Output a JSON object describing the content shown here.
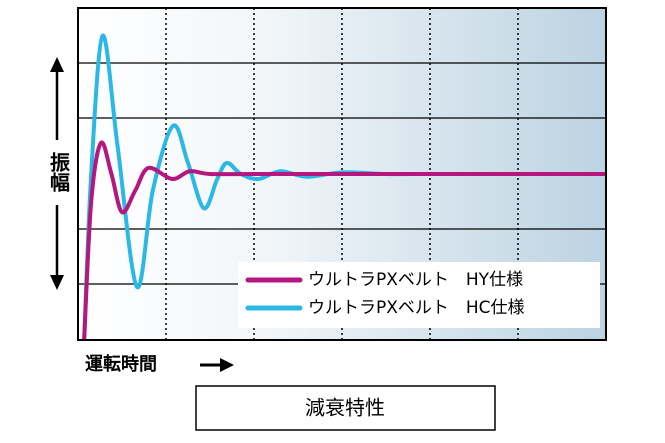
{
  "chart_data": {
    "type": "line",
    "title": "減衰特性",
    "xlabel": "運転時間",
    "ylabel": "振幅",
    "xlim": [
      0,
      6
    ],
    "ylim": [
      -3,
      3
    ],
    "legend": "lower right",
    "series": [
      {
        "name": "ウルトラPXベルト　HY仕様",
        "color": "#b5177f",
        "x": [
          0.07,
          0.15,
          0.26,
          0.38,
          0.5,
          0.65,
          0.8,
          1.07,
          1.27,
          1.5,
          2,
          3,
          4,
          5,
          6
        ],
        "values": [
          -3,
          -0.5,
          0.56,
          0.0,
          -0.69,
          -0.3,
          0.11,
          -0.09,
          0.05,
          0,
          0,
          0,
          0,
          0,
          0
        ]
      },
      {
        "name": "ウルトラPXベルト　HC仕様",
        "color": "#2bb8e6",
        "x": [
          0.07,
          0.15,
          0.28,
          0.45,
          0.67,
          0.85,
          1.08,
          1.25,
          1.43,
          1.58,
          1.69,
          1.85,
          2.05,
          2.3,
          2.6,
          3.0,
          3.5,
          4.0,
          4.5,
          5.0,
          5.5,
          6.0
        ],
        "values": [
          -3,
          0,
          2.5,
          0.5,
          -2.04,
          -0.3,
          0.87,
          0.2,
          -0.62,
          -0.1,
          0.2,
          0,
          -0.09,
          0.05,
          -0.05,
          0.03,
          0,
          0,
          0,
          0,
          0,
          0
        ]
      }
    ]
  }
}
